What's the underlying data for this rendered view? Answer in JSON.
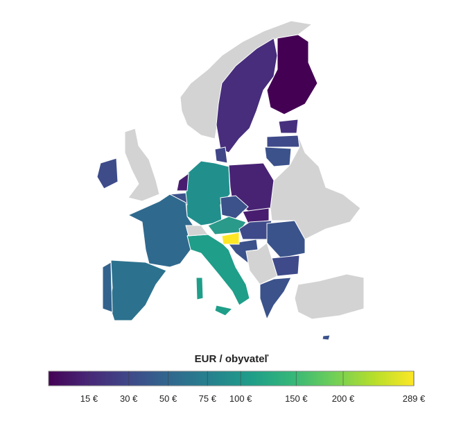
{
  "legend": {
    "title": "EUR / obyvateľ",
    "scale": "sqrt",
    "lim": [
      5,
      289
    ],
    "ticks": [
      {
        "value": 15,
        "label": "15 €"
      },
      {
        "value": 30,
        "label": "30 €"
      },
      {
        "value": 50,
        "label": "50 €"
      },
      {
        "value": 75,
        "label": "75 €"
      },
      {
        "value": 100,
        "label": "100 €"
      },
      {
        "value": 150,
        "label": "150 €"
      },
      {
        "value": 200,
        "label": "200 €"
      },
      {
        "value": 289,
        "label": "289 €"
      }
    ],
    "colors": [
      "#440154",
      "#482878",
      "#3e4989",
      "#31688e",
      "#26828e",
      "#1f9e89",
      "#35b779",
      "#6ece58",
      "#b5de2b",
      "#fde725"
    ]
  }
}
